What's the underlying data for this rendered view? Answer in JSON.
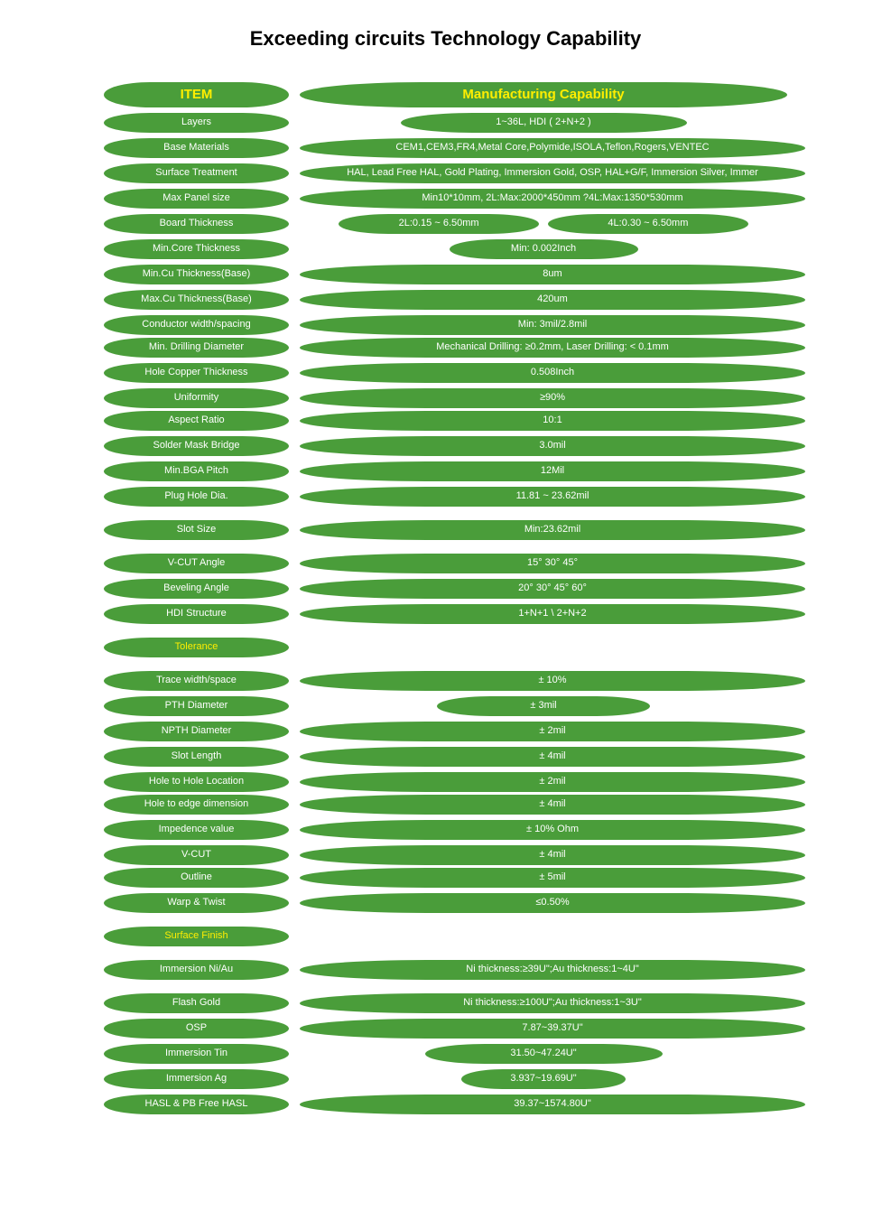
{
  "page_title": "Exceeding circuits Technology Capability",
  "headers": {
    "item": "ITEM",
    "capability": "Manufacturing Capability"
  },
  "colors": {
    "pill_green": "#4a9d3a",
    "text_yellow": "#ffee00",
    "text_white": "#ffffff",
    "title_black": "#000000",
    "background": "#ffffff"
  },
  "rows": [
    {
      "item": "Layers",
      "cap": "1~36L,  HDI ( 2+N+2 )",
      "cw": "narrow-55"
    },
    {
      "item": "Base Materials",
      "cap": "CEM1,CEM3,FR4,Metal Core,Polymide,ISOLA,Teflon,Rogers,VENTEC",
      "cw": "full"
    },
    {
      "item": "Surface Treatment",
      "cap": "HAL, Lead Free HAL, Gold Plating, Immersion Gold, OSP, HAL+G/F, Immersion Silver, Immer",
      "cw": "full"
    },
    {
      "item": "Max Panel size",
      "cap": "Min10*10mm, 2L:Max:2000*450mm ?4L:Max:1350*530mm",
      "cw": "full"
    },
    {
      "item": "Board Thickness",
      "pair": [
        "2L:0.15 ~ 6.50mm",
        "4L:0.30 ~ 6.50mm"
      ]
    },
    {
      "item": "Min.Core Thickness",
      "cap": "Min: 0.002Inch",
      "cw": "narrow-35"
    },
    {
      "item": "Min.Cu Thickness(Base)",
      "cap": "8um",
      "cw": "full"
    },
    {
      "item": "Max.Cu Thickness(Base)",
      "cap": "420um",
      "cw": "full"
    },
    {
      "item_multi": [
        "Conductor width/spacing",
        "Min. Drilling Diameter"
      ],
      "cap_multi": [
        "Min: 3mil/2.8mil",
        "Mechanical Drilling: ≥0.2mm, Laser Drilling: < 0.1mm"
      ],
      "cw": "full"
    },
    {
      "item": "Hole Copper Thickness",
      "cap": "0.508Inch",
      "cw": "full"
    },
    {
      "item_multi": [
        "Uniformity",
        "Aspect Ratio"
      ],
      "cap_multi": [
        "≥90%",
        "10:1"
      ],
      "cw": "full"
    },
    {
      "item": "Solder Mask Bridge",
      "cap": "3.0mil",
      "cw": "full"
    },
    {
      "item": "Min.BGA Pitch",
      "cap": "12Mil",
      "cw": "full"
    },
    {
      "item": "Plug Hole Dia.",
      "cap": "11.81 ~ 23.62mil",
      "cw": "full"
    },
    {
      "item": "Slot Size",
      "cap": "Min:23.62mil",
      "cw": "full",
      "gap": true
    },
    {
      "item": "V-CUT Angle",
      "cap": "15°   30°   45°",
      "cw": "full",
      "gap": true
    },
    {
      "item": "Beveling Angle",
      "cap": "20°   30°   45°   60°",
      "cw": "full"
    },
    {
      "item": "HDI Structure",
      "cap": "1+N+1 \\ 2+N+2",
      "cw": "full"
    },
    {
      "item_yellow": "Tolerance",
      "gap": true
    },
    {
      "item": "Trace width/space",
      "cap": "± 10%",
      "cw": "full",
      "gap": true
    },
    {
      "item": "PTH Diameter",
      "cap": "± 3mil",
      "cw": "narrow-40"
    },
    {
      "item": "NPTH Diameter",
      "cap": "± 2mil",
      "cw": "full"
    },
    {
      "item": "Slot Length",
      "cap": "± 4mil",
      "cw": "full"
    },
    {
      "item_multi": [
        "Hole to Hole Location",
        "Hole to edge dimension"
      ],
      "cap_multi": [
        "± 2mil",
        "± 4mil"
      ],
      "cw": "full"
    },
    {
      "item": "Impedence value",
      "cap": "± 10% Ohm",
      "cw": "full"
    },
    {
      "item_multi": [
        "V-CUT",
        "Outline"
      ],
      "cap_multi": [
        "± 4mil",
        "± 5mil"
      ],
      "cw": "full"
    },
    {
      "item": "Warp & Twist",
      "cap": "≤0.50%",
      "cw": "full"
    },
    {
      "item_yellow": "Surface Finish",
      "gap": true
    },
    {
      "item": "Immersion Ni/Au",
      "cap": "Ni thickness:≥39U\";Au thickness:1~4U\"",
      "cw": "full",
      "gap": true
    },
    {
      "item": "Flash Gold",
      "cap": "Ni thickness:≥100U\";Au thickness:1~3U\"",
      "cw": "full",
      "gap": true
    },
    {
      "item": "OSP",
      "cap": "7.87~39.37U\"",
      "cw": "full"
    },
    {
      "item": "Immersion Tin",
      "cap": "31.50~47.24U\"",
      "cw": "narrow-45"
    },
    {
      "item": "Immersion Ag",
      "cap": "3.937~19.69U\"",
      "cw": "narrow-30"
    },
    {
      "item": "HASL & PB Free HASL",
      "cap": "39.37~1574.80U\"",
      "cw": "full"
    }
  ]
}
